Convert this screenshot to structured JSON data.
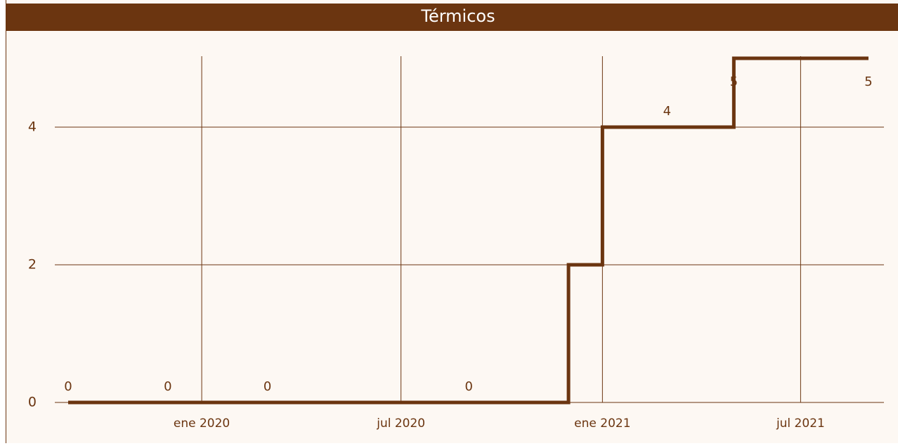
{
  "chart_data": {
    "type": "line",
    "step": "post",
    "title": "Térmicos",
    "series": [
      {
        "name": null,
        "color": "#6b3510",
        "x": [
          "2019-09",
          "2019-12",
          "2020-03",
          "2020-09",
          "2020-12",
          "2021-01",
          "2021-03",
          "2021-05",
          "2021-09"
        ],
        "values": [
          0,
          0,
          0,
          0,
          2,
          4,
          4,
          5,
          5
        ],
        "value_labels": [
          "0",
          "0",
          "0",
          "0",
          null,
          null,
          "4",
          "5",
          "5"
        ]
      }
    ],
    "xlim": [
      "2019-09",
      "2021-09"
    ],
    "xticks": [
      {
        "value": "2020-01",
        "label": "ene 2020"
      },
      {
        "value": "2020-07",
        "label": "jul 2020"
      },
      {
        "value": "2021-01",
        "label": "ene 2021"
      },
      {
        "value": "2021-07",
        "label": "jul 2021"
      }
    ],
    "ylim": [
      0,
      5
    ],
    "yticks": [
      0,
      2,
      4
    ],
    "grid": true
  }
}
